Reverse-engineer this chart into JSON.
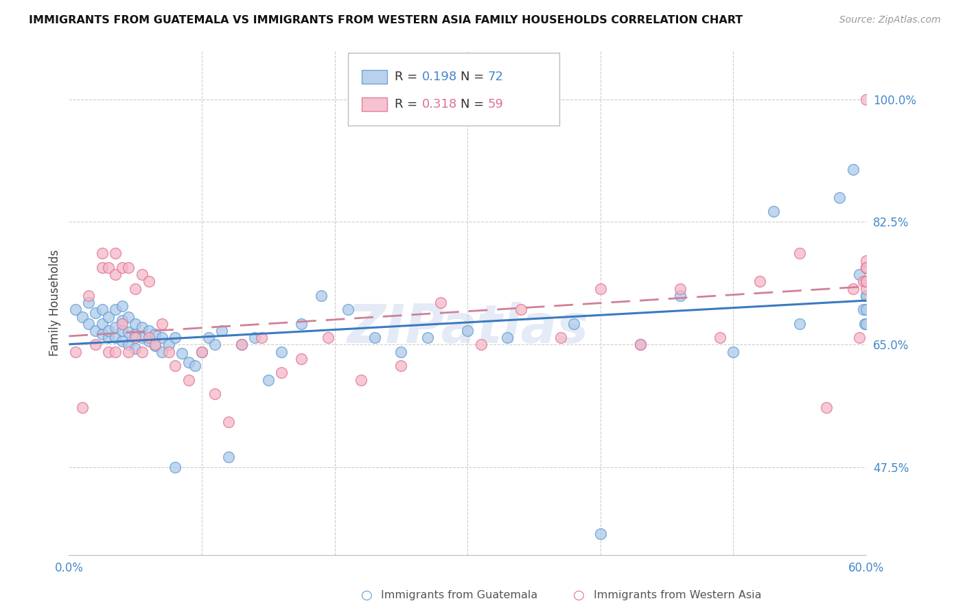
{
  "title": "IMMIGRANTS FROM GUATEMALA VS IMMIGRANTS FROM WESTERN ASIA FAMILY HOUSEHOLDS CORRELATION CHART",
  "source": "Source: ZipAtlas.com",
  "ylabel": "Family Households",
  "ytick_labels": [
    "100.0%",
    "82.5%",
    "65.0%",
    "47.5%"
  ],
  "ytick_values": [
    1.0,
    0.825,
    0.65,
    0.475
  ],
  "xmin": 0.0,
  "xmax": 0.6,
  "ymin": 0.35,
  "ymax": 1.07,
  "R_blue": 0.198,
  "N_blue": 72,
  "R_pink": 0.318,
  "N_pink": 59,
  "blue_fill": "#aec9e8",
  "blue_edge": "#5b9bd5",
  "pink_fill": "#f4b8c8",
  "pink_edge": "#e07090",
  "blue_line_color": "#3a7abf",
  "pink_line_color": "#d08098",
  "watermark": "ZIPatlas",
  "legend_blue_label": "Immigrants from Guatemala",
  "legend_pink_label": "Immigrants from Western Asia",
  "blue_scatter_x": [
    0.005,
    0.01,
    0.015,
    0.015,
    0.02,
    0.02,
    0.025,
    0.025,
    0.025,
    0.03,
    0.03,
    0.03,
    0.035,
    0.035,
    0.035,
    0.04,
    0.04,
    0.04,
    0.04,
    0.045,
    0.045,
    0.045,
    0.05,
    0.05,
    0.05,
    0.055,
    0.055,
    0.06,
    0.06,
    0.065,
    0.065,
    0.07,
    0.07,
    0.075,
    0.08,
    0.08,
    0.085,
    0.09,
    0.095,
    0.1,
    0.105,
    0.11,
    0.115,
    0.12,
    0.13,
    0.14,
    0.15,
    0.16,
    0.175,
    0.19,
    0.21,
    0.23,
    0.25,
    0.27,
    0.3,
    0.33,
    0.38,
    0.4,
    0.43,
    0.46,
    0.5,
    0.53,
    0.55,
    0.58,
    0.59,
    0.595,
    0.598,
    0.599,
    0.6,
    0.6,
    0.6,
    0.6
  ],
  "blue_scatter_y": [
    0.7,
    0.69,
    0.71,
    0.68,
    0.67,
    0.695,
    0.665,
    0.68,
    0.7,
    0.66,
    0.67,
    0.69,
    0.66,
    0.675,
    0.7,
    0.655,
    0.67,
    0.685,
    0.705,
    0.65,
    0.668,
    0.69,
    0.645,
    0.665,
    0.68,
    0.66,
    0.675,
    0.655,
    0.67,
    0.648,
    0.665,
    0.64,
    0.66,
    0.65,
    0.475,
    0.66,
    0.638,
    0.625,
    0.62,
    0.64,
    0.66,
    0.65,
    0.67,
    0.49,
    0.65,
    0.66,
    0.6,
    0.64,
    0.68,
    0.72,
    0.7,
    0.66,
    0.64,
    0.66,
    0.67,
    0.66,
    0.68,
    0.38,
    0.65,
    0.72,
    0.64,
    0.84,
    0.68,
    0.86,
    0.9,
    0.75,
    0.7,
    0.68,
    0.72,
    0.7,
    0.68,
    0.72
  ],
  "pink_scatter_x": [
    0.005,
    0.01,
    0.015,
    0.02,
    0.025,
    0.025,
    0.03,
    0.03,
    0.035,
    0.035,
    0.035,
    0.04,
    0.04,
    0.045,
    0.045,
    0.05,
    0.05,
    0.055,
    0.055,
    0.06,
    0.06,
    0.065,
    0.07,
    0.075,
    0.08,
    0.09,
    0.1,
    0.11,
    0.12,
    0.13,
    0.145,
    0.16,
    0.175,
    0.195,
    0.22,
    0.25,
    0.28,
    0.31,
    0.34,
    0.37,
    0.4,
    0.43,
    0.46,
    0.49,
    0.52,
    0.55,
    0.57,
    0.59,
    0.595,
    0.598,
    0.6,
    0.6,
    0.6,
    0.6,
    0.6,
    0.6,
    0.6,
    0.6,
    0.6
  ],
  "pink_scatter_y": [
    0.64,
    0.56,
    0.72,
    0.65,
    0.76,
    0.78,
    0.64,
    0.76,
    0.64,
    0.75,
    0.78,
    0.68,
    0.76,
    0.64,
    0.76,
    0.66,
    0.73,
    0.64,
    0.75,
    0.66,
    0.74,
    0.65,
    0.68,
    0.64,
    0.62,
    0.6,
    0.64,
    0.58,
    0.54,
    0.65,
    0.66,
    0.61,
    0.63,
    0.66,
    0.6,
    0.62,
    0.71,
    0.65,
    0.7,
    0.66,
    0.73,
    0.65,
    0.73,
    0.66,
    0.74,
    0.78,
    0.56,
    0.73,
    0.66,
    0.74,
    0.73,
    0.76,
    0.76,
    0.74,
    0.76,
    0.77,
    0.74,
    0.76,
    1.0
  ]
}
